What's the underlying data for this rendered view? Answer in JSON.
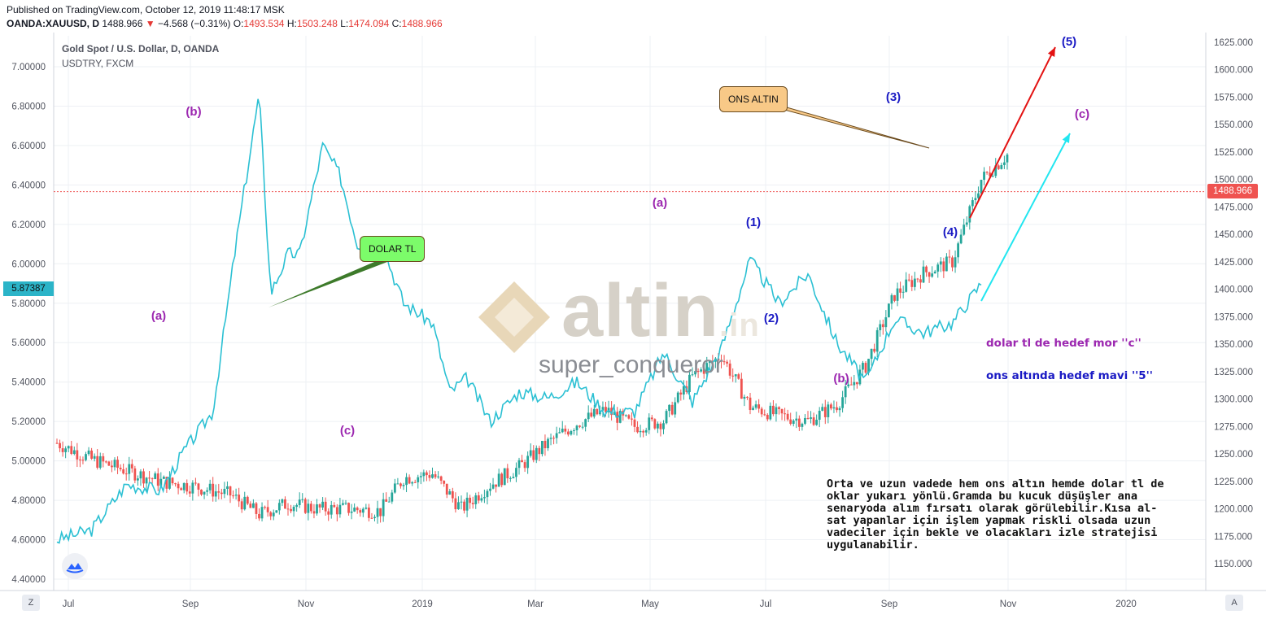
{
  "header": {
    "published": "Published on TradingView.com, October 12, 2019 11:48:17 MSK",
    "symbol": "OANDA:XAUUSD, D",
    "last": "1488.966",
    "change": "−4.568 (−0.31%)",
    "o_key": "O:",
    "o_val": "1493.534",
    "h_key": "H:",
    "h_val": "1503.248",
    "l_key": "L:",
    "l_val": "1474.094",
    "c_key": "C:",
    "c_val": "1488.966"
  },
  "legend": {
    "title": "Gold Spot / U.S. Dollar, D, OANDA",
    "subtitle": "USDTRY, FXCM"
  },
  "callouts": {
    "dolar": "DOLAR TL",
    "ons": "ONS ALTIN"
  },
  "watermark": {
    "logo_text": "altin",
    "logo_suffix": ".in",
    "user": "super_conqueror"
  },
  "tags": {
    "gold_price": "1488.966",
    "usdtry": "5.87387"
  },
  "notes": {
    "target_dolar": "dolar tl de hedef mor ''c''",
    "target_ons": "ons altında hedef mavi ''5''",
    "body": "Orta ve uzun vadede hem ons altın hemde dolar tl de oklar yukarı yönlü.Gramda bu kucuk düşüşler ana senaryoda alım fırsatı olarak görülebilir.Kısa al-sat yapanlar için işlem yapmak riskli olsada uzun vadeciler için bekle ve olacakları izle stratejisi uygulanabilir."
  },
  "buttons": {
    "zoom": "Z",
    "auto": "A"
  },
  "waves": {
    "usdtry": [
      "(a)",
      "(b)",
      "(c)",
      "(a)",
      "(b)",
      "(c)"
    ],
    "gold": [
      "(1)",
      "(2)",
      "(3)",
      "(4)",
      "(5)"
    ]
  },
  "colors": {
    "usdtry_line": "#2bc0d3",
    "candle_up": "#26a69a",
    "candle_down": "#ef5350",
    "wave_purple": "#9c27b0",
    "wave_blue": "#1a1ac4",
    "arrow_red": "#e31212",
    "arrow_cyan": "#22e6f0"
  },
  "chart_data": {
    "type": "line",
    "x_ticks": [
      "Jul",
      "Sep",
      "Nov",
      "2019",
      "Mar",
      "May",
      "Jul",
      "Sep",
      "Nov",
      "2020"
    ],
    "y_left_ticks": [
      "7.00000",
      "6.80000",
      "6.60000",
      "6.40000",
      "6.20000",
      "6.00000",
      "5.80000",
      "5.60000",
      "5.40000",
      "5.20000",
      "5.00000",
      "4.80000",
      "4.60000",
      "4.40000"
    ],
    "y_right_ticks": [
      "1625.000",
      "1600.000",
      "1575.000",
      "1550.000",
      "1525.000",
      "1500.000",
      "1475.000",
      "1450.000",
      "1425.000",
      "1400.000",
      "1375.000",
      "1350.000",
      "1325.000",
      "1300.000",
      "1275.000",
      "1250.000",
      "1225.000",
      "1200.000",
      "1175.000",
      "1150.000"
    ],
    "y_left_lim": [
      4.4,
      7.0
    ],
    "y_right_lim": [
      1150,
      1625
    ],
    "series": [
      {
        "type": "line",
        "unit_axis": "left",
        "x": [
          0.0,
          0.3,
          0.6,
          0.9,
          1.1,
          1.35,
          1.55,
          1.75,
          1.85,
          2.0,
          2.1,
          2.3,
          2.45,
          2.6,
          2.8,
          3.0,
          3.25,
          3.4,
          3.55,
          3.75,
          4.0,
          4.25,
          4.5,
          4.75,
          5.0,
          5.25,
          5.5,
          5.75,
          6.0,
          6.25,
          6.5,
          6.75,
          7.0,
          7.25,
          7.5,
          7.75,
          8.0
        ],
        "y": [
          4.6,
          4.65,
          4.88,
          4.85,
          5.05,
          5.25,
          6.1,
          6.86,
          5.85,
          6.05,
          6.05,
          6.6,
          6.45,
          6.1,
          6.12,
          5.8,
          5.7,
          5.35,
          5.42,
          5.2,
          5.35,
          5.32,
          5.4,
          5.25,
          5.25,
          5.55,
          5.3,
          5.57,
          6.02,
          5.8,
          5.95,
          5.6,
          5.4,
          5.72,
          5.65,
          5.7,
          5.9
        ]
      },
      {
        "type": "candlestick",
        "unit_axis": "right",
        "x": [
          0.0,
          0.3,
          0.6,
          0.9,
          1.2,
          1.5,
          1.75,
          2.0,
          2.25,
          2.5,
          2.8,
          3.0,
          3.25,
          3.5,
          3.75,
          4.0,
          4.25,
          4.5,
          4.75,
          5.0,
          5.25,
          5.5,
          5.75,
          6.0,
          6.25,
          6.5,
          6.75,
          7.0,
          7.25,
          7.5,
          7.75,
          8.0,
          8.25
        ],
        "y": [
          1260,
          1245,
          1235,
          1225,
          1220,
          1213,
          1195,
          1205,
          1200,
          1200,
          1198,
          1228,
          1232,
          1200,
          1222,
          1238,
          1260,
          1278,
          1290,
          1275,
          1280,
          1320,
          1340,
          1293,
          1285,
          1280,
          1295,
          1330,
          1395,
          1415,
          1425,
          1500,
          1525
        ]
      }
    ]
  }
}
